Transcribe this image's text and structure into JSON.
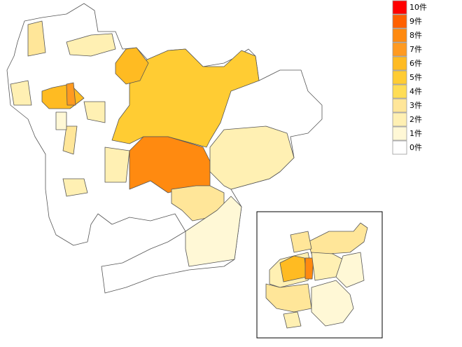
{
  "legend": {
    "items": [
      {
        "label": "10件",
        "color": "#ff0000"
      },
      {
        "label": "9件",
        "color": "#ff6000"
      },
      {
        "label": "8件",
        "color": "#ff8a10"
      },
      {
        "label": "7件",
        "color": "#ff9a20"
      },
      {
        "label": "6件",
        "color": "#ffbb22"
      },
      {
        "label": "5件",
        "color": "#ffcc33"
      },
      {
        "label": "4件",
        "color": "#ffdd55"
      },
      {
        "label": "3件",
        "color": "#ffe699"
      },
      {
        "label": "2件",
        "color": "#fff0b3"
      },
      {
        "label": "1件",
        "color": "#fff8d6"
      },
      {
        "label": "0件",
        "color": "#ffffff"
      }
    ]
  }
}
